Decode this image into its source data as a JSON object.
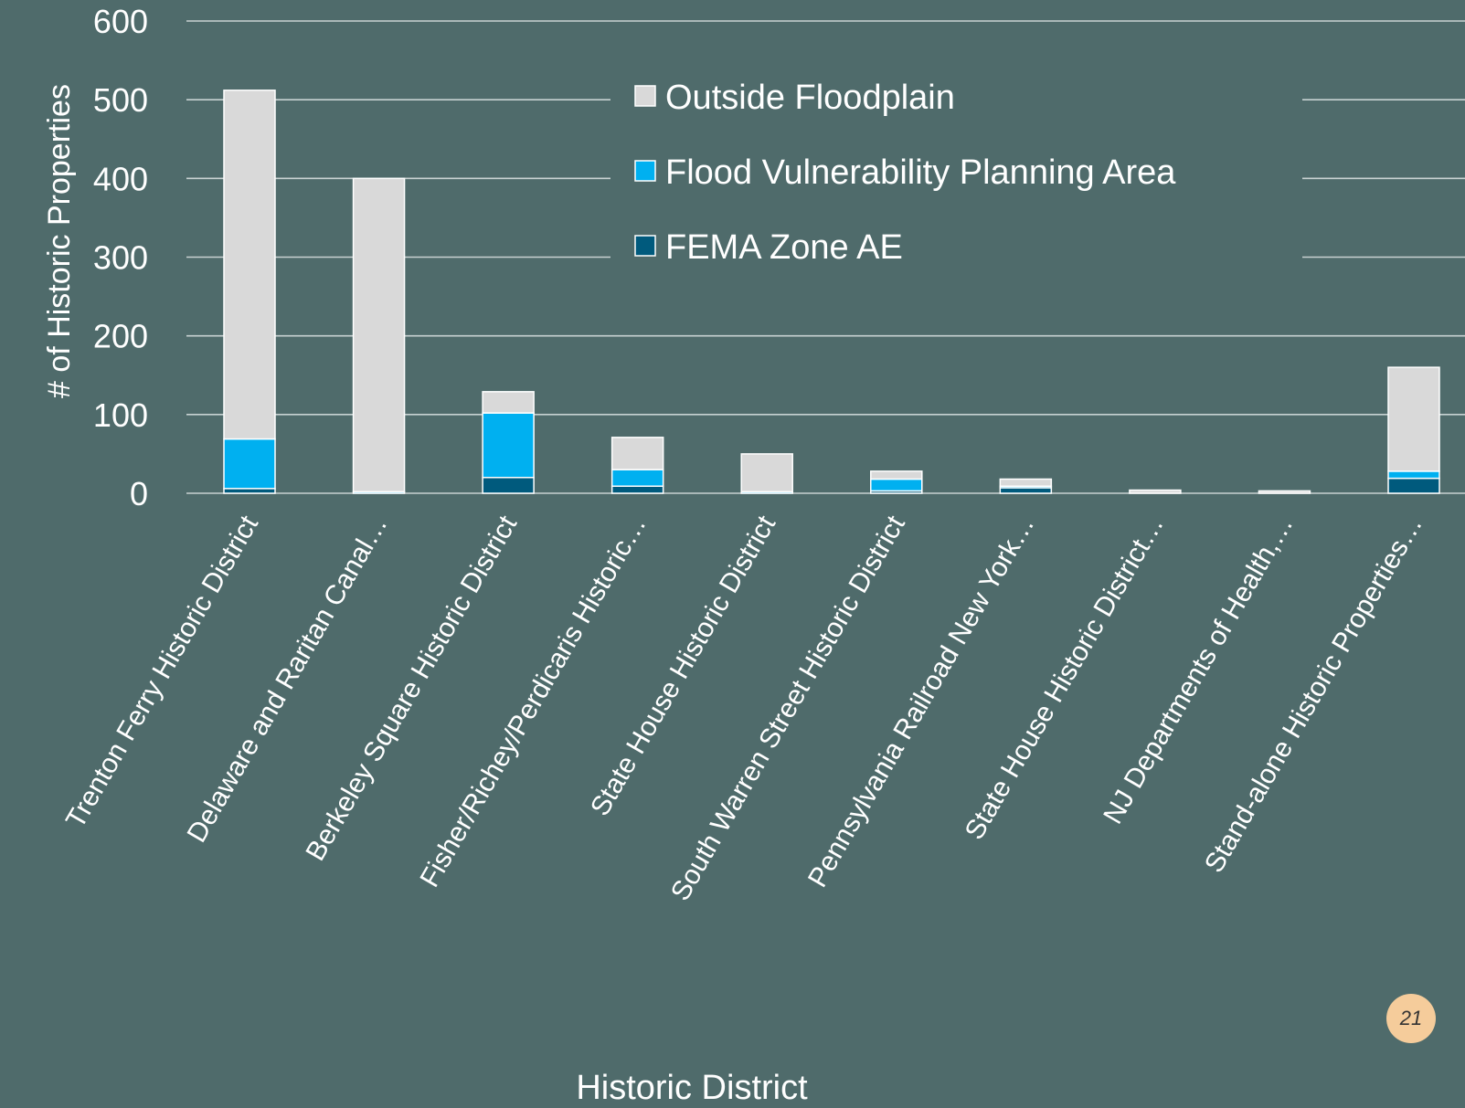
{
  "slide": {
    "page_number": "21"
  },
  "colors": {
    "background": "#4f6b6b",
    "outside": "#d9d9d9",
    "flood": "#00b0f0",
    "fema": "#005a7d",
    "grid": "#c8d2d2",
    "text": "#ffffff",
    "badge": "#f5cc9b"
  },
  "chart_data": {
    "type": "bar",
    "stacked": true,
    "xlabel": "Historic District",
    "ylabel": "# of Historic Properties",
    "ylim": [
      0,
      600
    ],
    "yticks": [
      0,
      100,
      200,
      300,
      400,
      500,
      600
    ],
    "grid": true,
    "legend_position": "top-center",
    "categories": [
      "Trenton Ferry Historic District",
      "Delaware and Raritan Canal…",
      "Berkeley Square Historic District",
      "Fisher/Richey/Perdicaris Historic…",
      "State House Historic District",
      "South Warren Street Historic District",
      "Pennsylvania Railroad New York…",
      "State House Historic District…",
      "NJ Departments of Health,…",
      "Stand-alone Historic Properties…"
    ],
    "series": [
      {
        "name": "FEMA Zone AE",
        "values": [
          6,
          0,
          20,
          9,
          0,
          3,
          7,
          0,
          0,
          19
        ]
      },
      {
        "name": "Flood Vulnerability Planning Area",
        "values": [
          63,
          2,
          82,
          21,
          2,
          15,
          2,
          0,
          0,
          9
        ]
      },
      {
        "name": "Outside Floodplain",
        "values": [
          443,
          398,
          27,
          41,
          48,
          10,
          9,
          4,
          3,
          132
        ]
      }
    ],
    "legend_order": [
      "Outside Floodplain",
      "Flood Vulnerability Planning Area",
      "FEMA Zone AE"
    ]
  }
}
